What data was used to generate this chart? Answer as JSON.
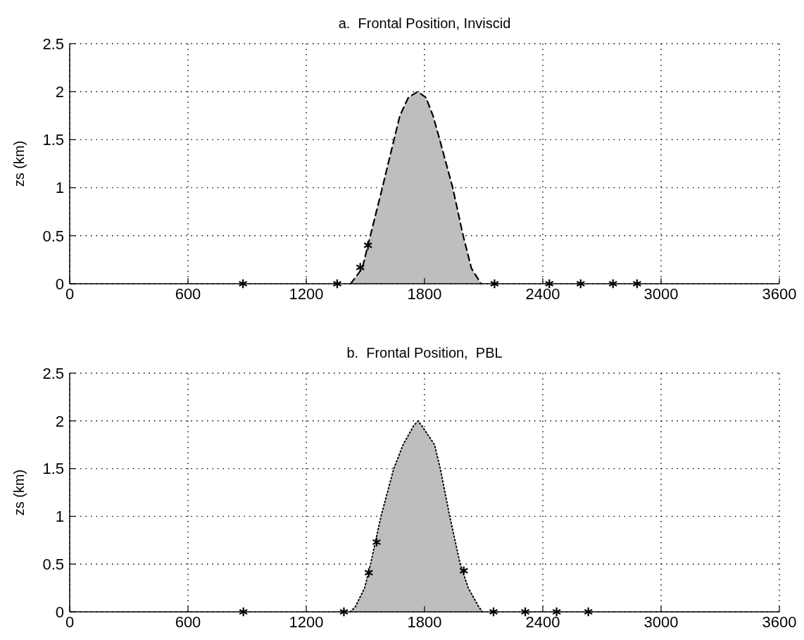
{
  "chart_data": [
    {
      "type": "area",
      "title": "a.  Frontal Position, Inviscid",
      "ylabel": "zs (km)",
      "xlim": [
        0,
        3600
      ],
      "xticks": [
        0,
        600,
        1200,
        1800,
        2400,
        3000,
        3600
      ],
      "ylim": [
        0,
        2.5
      ],
      "yticks": [
        0,
        0.5,
        1,
        1.5,
        2,
        2.5
      ],
      "grid": true,
      "series": [
        {
          "color": "#bebebe",
          "line_style": "dashed",
          "x": [
            1425,
            1484,
            1525,
            1586,
            1645,
            1675,
            1718,
            1765,
            1807,
            1843,
            1877,
            1943,
            1996,
            2038,
            2087
          ],
          "values": [
            0,
            0.16,
            0.5,
            1.0,
            1.5,
            1.75,
            1.94,
            2.0,
            1.94,
            1.75,
            1.5,
            1.0,
            0.5,
            0.16,
            0
          ]
        },
        {
          "type": "scatter",
          "color": "#000000",
          "marker": "cross",
          "x": [
            879,
            1357,
            1474,
            1513,
            2155,
            2433,
            2592,
            2756,
            2878
          ],
          "values": [
            0,
            0,
            0.17,
            0.4,
            0,
            0,
            0,
            0,
            0
          ]
        }
      ]
    },
    {
      "type": "area",
      "title": "b.  Frontal Position,  PBL",
      "ylabel": "zs (km)",
      "xlim": [
        0,
        3600
      ],
      "xticks": [
        0,
        600,
        1200,
        1800,
        2400,
        3000,
        3600
      ],
      "ylim": [
        0,
        2.5
      ],
      "yticks": [
        0,
        0.5,
        1,
        1.5,
        2,
        2.5
      ],
      "grid": true,
      "series": [
        {
          "color": "#bebebe",
          "line_style": "dotted",
          "x": [
            1423,
            1448,
            1496,
            1526,
            1579,
            1644,
            1691,
            1745,
            1767,
            1786,
            1851,
            1880,
            1928,
            1981,
            2022,
            2076,
            2094
          ],
          "values": [
            0,
            0.05,
            0.25,
            0.5,
            1.0,
            1.5,
            1.75,
            1.95,
            2.0,
            1.95,
            1.75,
            1.5,
            1.0,
            0.5,
            0.25,
            0.05,
            0
          ]
        },
        {
          "type": "scatter",
          "color": "#000000",
          "marker": "cross",
          "x": [
            881,
            1391,
            1517,
            1557,
            1999,
            2150,
            2311,
            2470,
            2631
          ],
          "values": [
            0,
            0,
            0.41,
            0.73,
            0.43,
            0,
            0,
            0,
            0
          ]
        }
      ]
    }
  ]
}
